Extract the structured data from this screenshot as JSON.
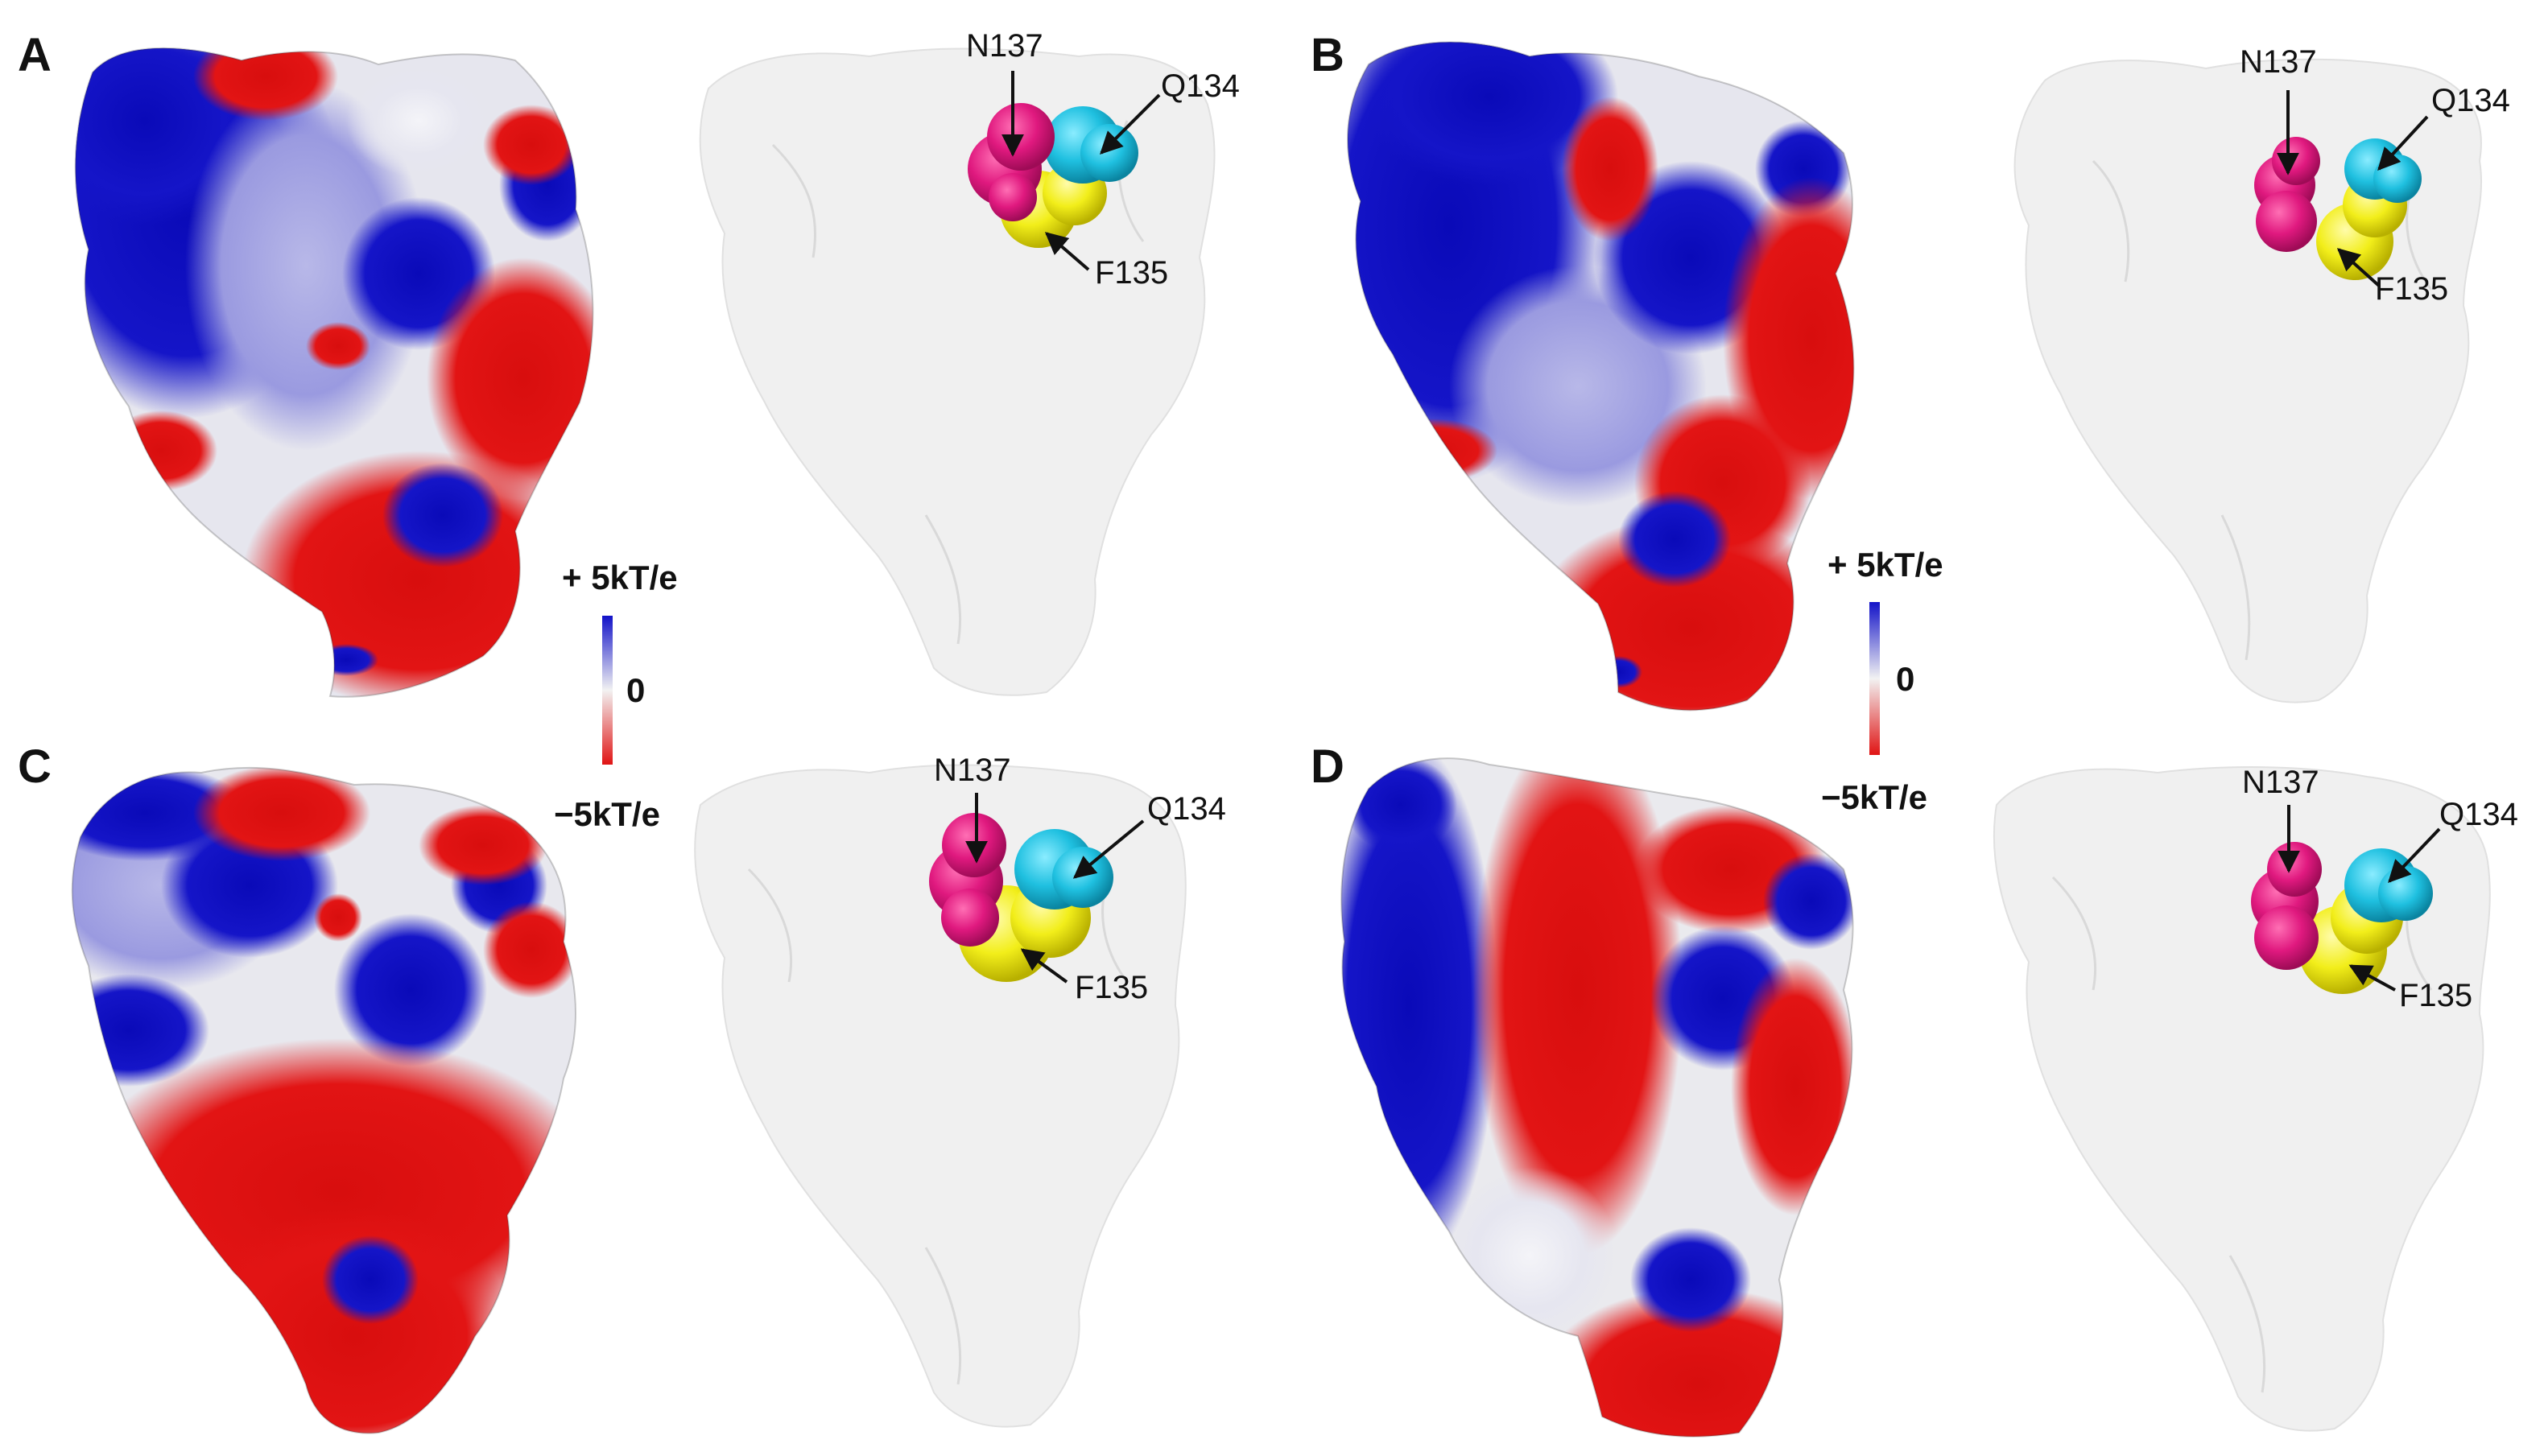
{
  "panels": [
    {
      "letter": "A"
    },
    {
      "letter": "B"
    },
    {
      "letter": "C"
    },
    {
      "letter": "D"
    }
  ],
  "residues": [
    {
      "name": "N137",
      "color": "#e0197f"
    },
    {
      "name": "Q134",
      "color": "#1fc0e0"
    },
    {
      "name": "F135",
      "color": "#f2ee1a"
    }
  ],
  "colorbar": {
    "max_label": "+ 5kT/e",
    "mid_label": "0",
    "min_label": "−5kT/e",
    "positive_color": "#1212c8",
    "neutral_color": "#f2f2f2",
    "negative_color": "#e01414"
  },
  "surface_colors": {
    "positive": "#1010c4",
    "negative": "#e21212",
    "neutral": "#eeeeee",
    "ghost": "#e4e4e4"
  }
}
